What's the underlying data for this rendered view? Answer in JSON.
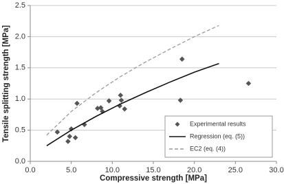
{
  "chart_data": {
    "type": "scatter",
    "x_label": "Compressive strength [MPa]",
    "y_label": "Tensile splitting strength [MPa]",
    "xlim": [
      0,
      30
    ],
    "ylim": [
      0,
      2.5
    ],
    "xticks": [
      {
        "value": 0,
        "label": "0.0"
      },
      {
        "value": 5,
        "label": "5.0"
      },
      {
        "value": 10,
        "label": "10.0"
      },
      {
        "value": 15,
        "label": "15.0"
      },
      {
        "value": 20,
        "label": "20.0"
      },
      {
        "value": 25,
        "label": "25.0"
      },
      {
        "value": 30,
        "label": "30.0"
      }
    ],
    "yticks": [
      {
        "value": 0,
        "label": "0.0"
      },
      {
        "value": 0.5,
        "label": "0.5"
      },
      {
        "value": 1,
        "label": "1.0"
      },
      {
        "value": 1.5,
        "label": "1.5"
      },
      {
        "value": 2,
        "label": "2.0"
      },
      {
        "value": 2.5,
        "label": "2.5"
      }
    ],
    "grid": true,
    "legend": "lower-right",
    "series": [
      {
        "name": "Experimental results",
        "mode": "markers",
        "color": "#555555",
        "x": [
          3.3,
          4.6,
          4.8,
          5.0,
          5.5,
          5.7,
          6.6,
          8.2,
          8.6,
          8.8,
          9.6,
          10.9,
          11.0,
          11.1,
          11.5,
          18.3,
          18.5,
          26.6
        ],
        "values": [
          0.47,
          0.32,
          0.4,
          0.52,
          0.38,
          0.93,
          0.59,
          0.85,
          0.86,
          0.8,
          0.97,
          0.89,
          1.06,
          0.98,
          0.84,
          0.98,
          1.64,
          1.25
        ]
      },
      {
        "name": "Regression (eq. (5))",
        "mode": "line",
        "dash": false,
        "color": "#111111",
        "x": [
          2,
          5,
          8,
          11,
          14,
          17,
          20,
          23
        ],
        "values": [
          0.25,
          0.5,
          0.72,
          0.92,
          1.1,
          1.27,
          1.43,
          1.57
        ]
      },
      {
        "name": "EC2 (eq. (4))",
        "mode": "line",
        "dash": true,
        "color": "#999999",
        "x": [
          2,
          5,
          8,
          11,
          14,
          17,
          20,
          23
        ],
        "values": [
          0.42,
          0.8,
          1.1,
          1.36,
          1.59,
          1.8,
          2.0,
          2.18
        ]
      }
    ]
  }
}
